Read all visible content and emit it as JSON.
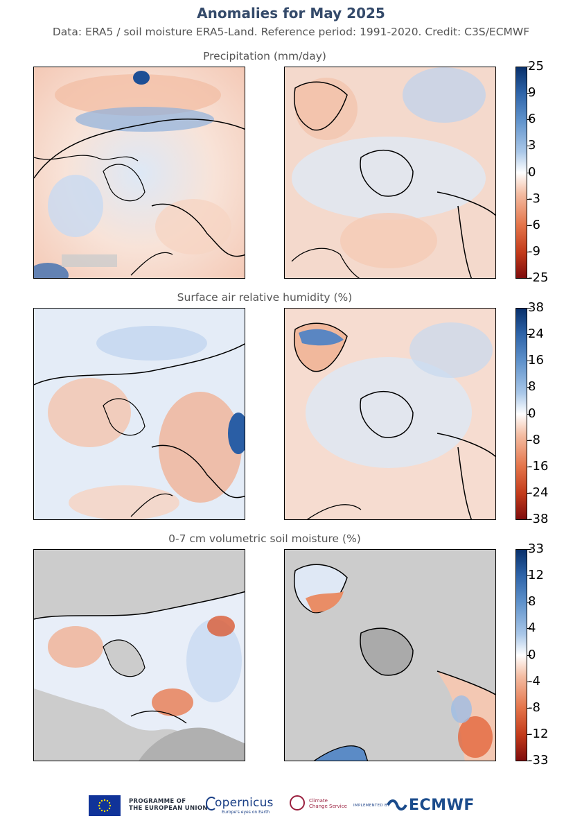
{
  "header": {
    "title": "Anomalies for May 2025",
    "subtitle": "Data: ERA5 / soil moisture ERA5-Land.  Reference period: 1991-2020.  Credit: C3S/ECMWF"
  },
  "panels": [
    {
      "title": "Precipitation (mm/day)",
      "colorbar_ticks": [
        "25",
        "9",
        "6",
        "3",
        "0",
        "-3",
        "-6",
        "-9",
        "-25"
      ]
    },
    {
      "title": "Surface air relative humidity (%)",
      "colorbar_ticks": [
        "38",
        "24",
        "16",
        "8",
        "0",
        "-8",
        "-16",
        "-24",
        "-38"
      ]
    },
    {
      "title": "0-7 cm volumetric soil moisture (%)",
      "colorbar_ticks": [
        "33",
        "12",
        "8",
        "4",
        "0",
        "-4",
        "-8",
        "-12",
        "-33"
      ]
    }
  ],
  "colors": {
    "wet_strong": "#08306b",
    "wet": "#4a7fc0",
    "wet_light": "#bcd3ef",
    "neutral": "#ffffff",
    "dry_light": "#f7c8b0",
    "dry": "#e2653a",
    "dry_strong": "#8c1010",
    "missing": "#cccccc"
  },
  "footer": {
    "eu_line1": "PROGRAMME OF",
    "eu_line2": "THE EUROPEAN UNION",
    "copernicus": "opernicus",
    "copernicus_sub": "Europe's eyes on Earth",
    "c3s_line1": "Climate",
    "c3s_line2": "Change Service",
    "implemented_by": "IMPLEMENTED BY",
    "ecmwf": "ECMWF"
  }
}
